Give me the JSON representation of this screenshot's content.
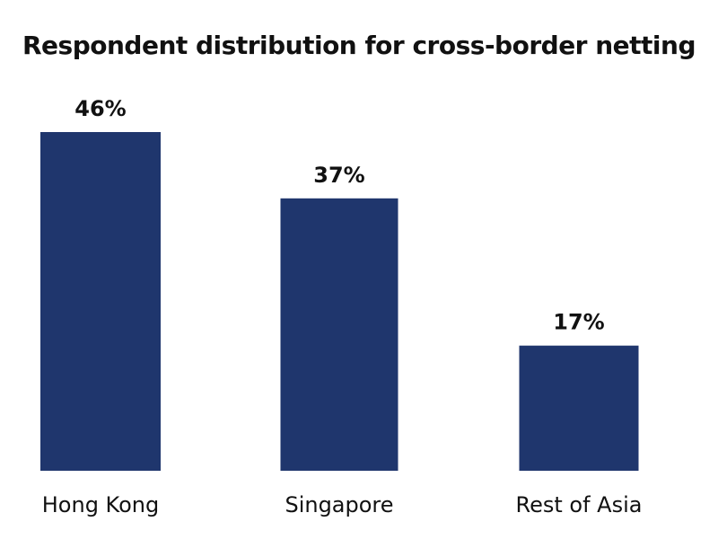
{
  "chart_data": {
    "type": "bar",
    "title": "Respondent distribution for cross-border netting",
    "xlabel": "",
    "ylabel": "",
    "categories": [
      "Hong Kong",
      "Singapore",
      "Rest of Asia"
    ],
    "values": [
      46,
      37,
      17
    ],
    "value_labels": [
      "46%",
      "37%",
      "17%"
    ],
    "unit": "%",
    "ylim": [
      0,
      46
    ],
    "grid": false,
    "legend": "none",
    "colors": {
      "bar": "#1f366d",
      "text": "#111111",
      "background": "#ffffff"
    }
  }
}
